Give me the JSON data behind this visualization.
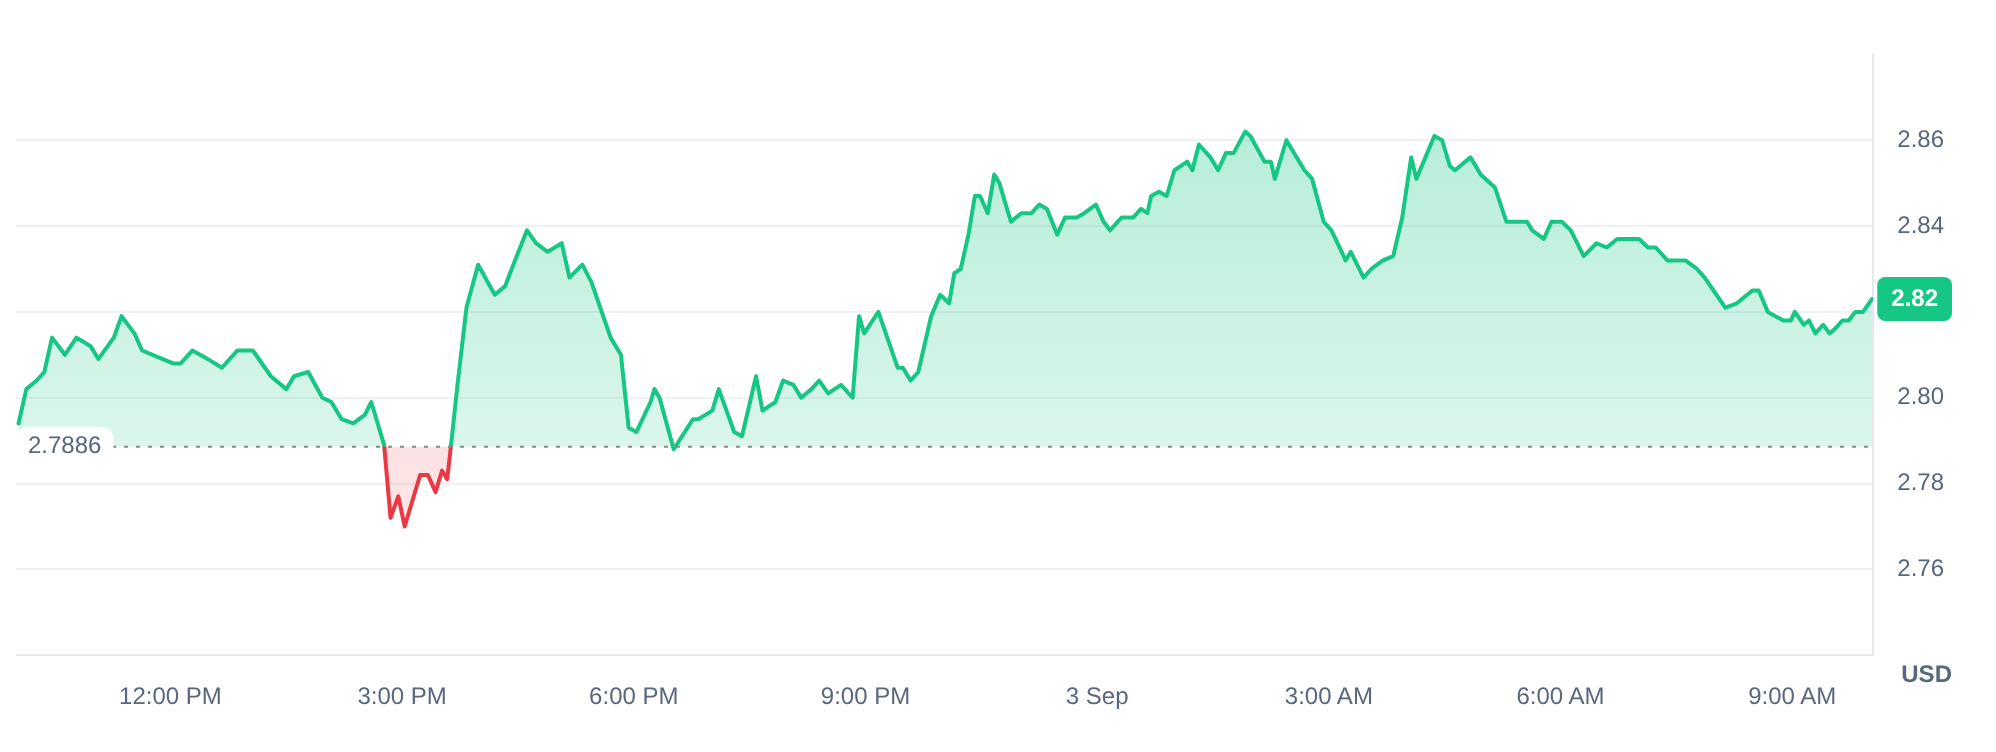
{
  "chart_data": {
    "type": "area",
    "ylabel": "USD",
    "x": [
      "--09-02T10:02",
      "--09-02T10:08",
      "--09-02T10:16",
      "--09-02T10:22",
      "--09-02T10:28",
      "--09-02T10:38",
      "--09-02T10:47",
      "--09-02T10:58",
      "--09-02T11:04",
      "--09-02T11:16",
      "--09-02T11:22",
      "--09-02T11:32",
      "--09-02T11:38",
      "--09-02T11:54",
      "--09-02T12:02",
      "--09-02T12:08",
      "--09-02T12:17",
      "--09-02T12:29",
      "--09-02T12:40",
      "--09-02T12:52",
      "--09-02T13:04",
      "--09-02T13:18",
      "--09-02T13:30",
      "--09-02T13:36",
      "--09-02T13:47",
      "--09-02T13:58",
      "--09-02T14:05",
      "--09-02T14:13",
      "--09-02T14:22",
      "--09-02T14:31",
      "--09-02T14:36",
      "--09-02T14:46",
      "--09-02T14:51",
      "--09-02T14:57",
      "--09-02T15:02",
      "--09-02T15:14",
      "--09-02T15:20",
      "--09-02T15:26",
      "--09-02T15:31",
      "--09-02T15:35",
      "--09-02T15:38",
      "--09-02T15:43",
      "--09-02T15:50",
      "--09-02T15:59",
      "--09-02T16:12",
      "--09-02T16:20",
      "--09-02T16:29",
      "--09-02T16:37",
      "--09-02T16:44",
      "--09-02T16:53",
      "--09-02T17:04",
      "--09-02T17:10",
      "--09-02T17:20",
      "--09-02T17:27",
      "--09-02T17:42",
      "--09-02T17:50",
      "--09-02T17:56",
      "--09-02T18:02",
      "--09-02T18:13",
      "--09-02T18:16",
      "--09-02T18:20",
      "--09-02T18:31",
      "--09-02T18:46",
      "--09-02T18:50",
      "--09-02T19:01",
      "--09-02T19:06",
      "--09-02T19:18",
      "--09-02T19:24",
      "--09-02T19:35",
      "--09-02T19:40",
      "--09-02T19:50",
      "--09-02T19:56",
      "--09-02T20:04",
      "--09-02T20:10",
      "--09-02T20:18",
      "--09-02T20:24",
      "--09-02T20:31",
      "--09-02T20:41",
      "--09-02T20:50",
      "--09-02T20:55",
      "--09-02T20:59",
      "--09-02T21:10",
      "--09-02T21:25",
      "--09-02T21:29",
      "--09-02T21:35",
      "--09-02T21:41",
      "--09-02T21:51",
      "--09-02T21:58",
      "--09-02T22:05",
      "--09-02T22:09",
      "--09-02T22:14",
      "--09-02T22:20",
      "--09-02T22:25",
      "--09-02T22:29",
      "--09-02T22:35",
      "--09-02T22:40",
      "--09-02T22:44",
      "--09-02T22:53",
      "--09-02T23:01",
      "--09-02T23:09",
      "--09-02T23:15",
      "--09-02T23:21",
      "--09-02T23:29",
      "--09-02T23:35",
      "--09-02T23:44",
      "--09-02T23:50",
      "--09-02T23:59",
      "--09-03T00:05",
      "--09-03T00:10",
      "--09-03T00:19",
      "--09-03T00:28",
      "--09-03T00:34",
      "--09-03T00:39",
      "--09-03T00:42",
      "--09-03T00:48",
      "--09-03T00:54",
      "--09-03T01:00",
      "--09-03T01:10",
      "--09-03T01:14",
      "--09-03T01:19",
      "--09-03T01:28",
      "--09-03T01:34",
      "--09-03T01:40",
      "--09-03T01:46",
      "--09-03T01:55",
      "--09-03T01:59",
      "--09-03T02:10",
      "--09-03T02:15",
      "--09-03T02:18",
      "--09-03T02:27",
      "--09-03T02:41",
      "--09-03T02:47",
      "--09-03T02:56",
      "--09-03T03:02",
      "--09-03T03:10",
      "--09-03T03:13",
      "--09-03T03:17",
      "--09-03T03:27",
      "--09-03T03:33",
      "--09-03T03:42",
      "--09-03T03:50",
      "--09-03T03:57",
      "--09-03T04:04",
      "--09-03T04:08",
      "--09-03T04:22",
      "--09-03T04:28",
      "--09-03T04:34",
      "--09-03T04:38",
      "--09-03T04:50",
      "--09-03T04:58",
      "--09-03T05:09",
      "--09-03T05:18",
      "--09-03T05:24",
      "--09-03T05:29",
      "--09-03T05:34",
      "--09-03T05:38",
      "--09-03T05:47",
      "--09-03T05:53",
      "--09-03T06:01",
      "--09-03T06:08",
      "--09-03T06:18",
      "--09-03T06:28",
      "--09-03T06:36",
      "--09-03T06:44",
      "--09-03T06:51",
      "--09-03T07:01",
      "--09-03T07:08",
      "--09-03T07:14",
      "--09-03T07:23",
      "--09-03T07:31",
      "--09-03T07:37",
      "--09-03T07:46",
      "--09-03T07:52",
      "--09-03T08:08",
      "--09-03T08:17",
      "--09-03T08:29",
      "--09-03T08:34",
      "--09-03T08:41",
      "--09-03T08:53",
      "--09-03T08:59",
      "--09-03T09:02",
      "--09-03T09:09",
      "--09-03T09:13",
      "--09-03T09:18",
      "--09-03T09:24",
      "--09-03T09:29",
      "--09-03T09:33",
      "--09-03T09:39",
      "--09-03T09:44",
      "--09-03T09:49",
      "--09-03T09:55",
      "--09-03T10:02"
    ],
    "series": [
      {
        "color": "#16c784",
        "values": [
          2.794,
          2.802,
          2.804,
          2.806,
          2.814,
          2.81,
          2.814,
          2.812,
          2.809,
          2.814,
          2.819,
          2.815,
          2.811,
          2.809,
          2.808,
          2.808,
          2.811,
          2.809,
          2.807,
          2.811,
          2.811,
          2.805,
          2.802,
          2.805,
          2.806,
          2.8,
          2.799,
          2.795,
          2.794,
          2.796,
          2.799,
          2.789,
          null,
          null,
          null,
          null,
          null,
          null,
          null,
          null,
          2.789,
          2.803,
          2.821,
          2.831,
          2.824,
          2.826,
          2.833,
          2.839,
          2.836,
          2.834,
          2.836,
          2.828,
          2.831,
          2.827,
          2.814,
          2.81,
          2.793,
          2.792,
          2.799,
          2.802,
          2.8,
          2.788,
          2.795,
          2.795,
          2.797,
          2.802,
          2.792,
          2.791,
          2.805,
          2.797,
          2.799,
          2.804,
          2.803,
          2.8,
          2.802,
          2.804,
          2.801,
          2.803,
          2.8,
          2.819,
          2.815,
          2.82,
          2.807,
          2.807,
          2.804,
          2.806,
          2.819,
          2.824,
          2.822,
          2.829,
          2.83,
          2.838,
          2.847,
          2.847,
          2.843,
          2.852,
          2.85,
          2.841,
          2.843,
          2.843,
          2.845,
          2.844,
          2.838,
          2.842,
          2.842,
          2.843,
          2.845,
          2.841,
          2.839,
          2.842,
          2.842,
          2.844,
          2.843,
          2.847,
          2.848,
          2.847,
          2.853,
          2.855,
          2.853,
          2.859,
          2.856,
          2.853,
          2.857,
          2.857,
          2.862,
          2.861,
          2.855,
          2.855,
          2.851,
          2.86,
          2.853,
          2.851,
          2.841,
          2.839,
          2.834,
          2.832,
          2.834,
          2.828,
          2.83,
          2.832,
          2.833,
          2.842,
          2.856,
          2.851,
          2.861,
          2.86,
          2.854,
          2.853,
          2.856,
          2.852,
          2.849,
          2.841,
          2.841,
          2.841,
          2.841,
          2.839,
          2.837,
          2.841,
          2.841,
          2.839,
          2.833,
          2.836,
          2.835,
          2.837,
          2.837,
          2.837,
          2.835,
          2.835,
          2.832,
          2.832,
          2.832,
          2.83,
          2.828,
          2.821,
          2.822,
          2.825,
          2.825,
          2.82,
          2.818,
          2.818,
          2.82,
          2.817,
          2.818,
          2.815,
          2.817,
          2.815,
          2.816,
          2.818,
          2.818,
          2.82,
          2.82,
          2.823
        ]
      },
      {
        "color": "#ea3943",
        "x": [
          "--09-02T14:46",
          "--09-02T14:51",
          "--09-02T14:57",
          "--09-02T15:02",
          "--09-02T15:14",
          "--09-02T15:20",
          "--09-02T15:26",
          "--09-02T15:31",
          "--09-02T15:35",
          "--09-02T15:38"
        ],
        "values": [
          2.789,
          2.772,
          2.777,
          2.77,
          2.782,
          2.782,
          2.778,
          2.783,
          2.781,
          2.789
        ]
      }
    ],
    "xlim": [
      "--09-02T10:00",
      "--09-03T10:03"
    ],
    "xticks": [
      {
        "value": "--09-02T12:00",
        "label": "12:00 PM"
      },
      {
        "value": "--09-02T15:00",
        "label": "3:00 PM"
      },
      {
        "value": "--09-02T18:00",
        "label": "6:00 PM"
      },
      {
        "value": "--09-02T21:00",
        "label": "9:00 PM"
      },
      {
        "value": "--09-03T00:00",
        "label": "3 Sep"
      },
      {
        "value": "--09-03T03:00",
        "label": "3:00 AM"
      },
      {
        "value": "--09-03T06:00",
        "label": "6:00 AM"
      },
      {
        "value": "--09-03T09:00",
        "label": "9:00 AM"
      }
    ],
    "ylim": [
      2.74,
      2.88
    ],
    "yticks": [
      {
        "value": 2.76,
        "label": "2.76"
      },
      {
        "value": 2.78,
        "label": "2.78"
      },
      {
        "value": 2.8,
        "label": "2.80"
      },
      {
        "value": 2.82,
        "label": null
      },
      {
        "value": 2.84,
        "label": "2.84"
      },
      {
        "value": 2.86,
        "label": "2.86"
      }
    ],
    "grid": "y",
    "legend": false,
    "marker": "none",
    "line_style": "solid",
    "ref_lines": [
      {
        "axis": "y",
        "value": 2.7886,
        "label": "2.7886",
        "color": "#888888",
        "line_style": "dotted"
      }
    ],
    "annotations": [
      {
        "text": "2.82",
        "y": 2.823
      }
    ]
  }
}
